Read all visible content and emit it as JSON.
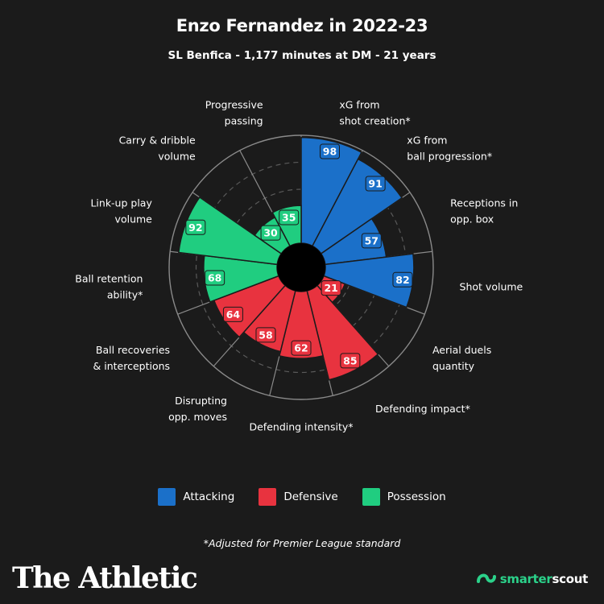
{
  "header": {
    "title": "Enzo Fernandez in 2022-23",
    "subtitle": "SL Benfica - 1,177 minutes at DM - 21 years"
  },
  "colors": {
    "Attacking": "#1b70c9",
    "Defensive": "#e8333f",
    "Possession": "#20cd80",
    "background": "#1b1b1b"
  },
  "legend": [
    {
      "name": "Attacking",
      "color": "#1b70c9"
    },
    {
      "name": "Defensive",
      "color": "#e8333f"
    },
    {
      "name": "Possession",
      "color": "#20cd80"
    }
  ],
  "chart_data": {
    "type": "pie",
    "variant": "radial-percentile",
    "range": [
      0,
      100
    ],
    "grid_levels": [
      25,
      50,
      75,
      100
    ],
    "categories": [
      {
        "label": [
          "xG from",
          "shot creation*"
        ],
        "value": 98,
        "group": "Attacking"
      },
      {
        "label": [
          "xG from",
          "ball progression*"
        ],
        "value": 91,
        "group": "Attacking"
      },
      {
        "label": [
          "Receptions in",
          "opp. box"
        ],
        "value": 57,
        "group": "Attacking"
      },
      {
        "label": [
          "Shot volume"
        ],
        "value": 82,
        "group": "Attacking"
      },
      {
        "label": [
          "Aerial duels",
          "quantity"
        ],
        "value": 21,
        "group": "Defensive"
      },
      {
        "label": [
          "Defending impact*"
        ],
        "value": 85,
        "group": "Defensive"
      },
      {
        "label": [
          "Defending intensity*"
        ],
        "value": 62,
        "group": "Defensive"
      },
      {
        "label": [
          "Disrupting",
          "opp. moves"
        ],
        "value": 58,
        "group": "Defensive"
      },
      {
        "label": [
          "Ball recoveries",
          "& interceptions"
        ],
        "value": 64,
        "group": "Defensive"
      },
      {
        "label": [
          "Ball retention",
          "ability*"
        ],
        "value": 68,
        "group": "Possession"
      },
      {
        "label": [
          "Link-up play",
          "volume"
        ],
        "value": 92,
        "group": "Possession"
      },
      {
        "label": [
          "Carry & dribble",
          "volume"
        ],
        "value": 30,
        "group": "Possession"
      },
      {
        "label": [
          "Progressive",
          "passing"
        ],
        "value": 35,
        "group": "Possession"
      }
    ]
  },
  "footnote": "*Adjusted for Premier League standard",
  "brand": "The Athletic",
  "scout": {
    "part1": "smarter",
    "part2": "scout"
  }
}
